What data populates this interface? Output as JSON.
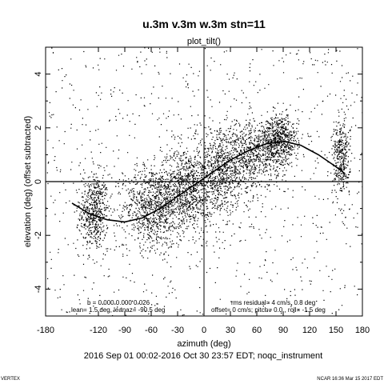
{
  "chart_data": {
    "type": "scatter",
    "title": "u.3m v.3m w.3m stn=11",
    "subtitle": "plot_tilt()",
    "xlabel": "azimuth (deg)",
    "ylabel": "elevation (deg)  (offset subtracted)",
    "xlim": [
      -180,
      180
    ],
    "ylim": [
      -5,
      5
    ],
    "xticks": [
      -180,
      -120,
      -90,
      -60,
      -30,
      0,
      30,
      60,
      90,
      120,
      150,
      180
    ],
    "xtick_labels": [
      "-180",
      "-120",
      "-90",
      "-60",
      "-30",
      "0",
      "30",
      "60",
      "90",
      "120",
      "150",
      "180"
    ],
    "yticks": [
      -4,
      -2,
      0,
      2,
      4
    ],
    "ytick_labels": [
      "-4",
      "-2",
      "0",
      "2",
      "4"
    ],
    "zero_lines": true,
    "grid": false,
    "legend": "none",
    "clusters": [
      {
        "x": -125,
        "y": -1.1,
        "sx": 8,
        "sy": 0.7,
        "n": 550
      },
      {
        "x": -60,
        "y": -0.9,
        "sx": 16,
        "sy": 0.75,
        "n": 850
      },
      {
        "x": -20,
        "y": -0.3,
        "sx": 15,
        "sy": 0.8,
        "n": 950
      },
      {
        "x": 20,
        "y": 0.4,
        "sx": 16,
        "sy": 0.75,
        "n": 800
      },
      {
        "x": 55,
        "y": 1.0,
        "sx": 14,
        "sy": 0.65,
        "n": 550
      },
      {
        "x": 85,
        "y": 1.55,
        "sx": 11,
        "sy": 0.45,
        "n": 700
      },
      {
        "x": 155,
        "y": 0.9,
        "sx": 5,
        "sy": 0.7,
        "n": 380
      }
    ],
    "fit_curve": [
      {
        "x": -150,
        "y": -0.8
      },
      {
        "x": -130,
        "y": -1.2
      },
      {
        "x": -110,
        "y": -1.42
      },
      {
        "x": -90,
        "y": -1.5
      },
      {
        "x": -70,
        "y": -1.35
      },
      {
        "x": -50,
        "y": -1.0
      },
      {
        "x": -30,
        "y": -0.55
      },
      {
        "x": -10,
        "y": -0.1
      },
      {
        "x": 10,
        "y": 0.35
      },
      {
        "x": 30,
        "y": 0.8
      },
      {
        "x": 50,
        "y": 1.15
      },
      {
        "x": 70,
        "y": 1.4
      },
      {
        "x": 90,
        "y": 1.5
      },
      {
        "x": 110,
        "y": 1.35
      },
      {
        "x": 130,
        "y": 1.0
      },
      {
        "x": 150,
        "y": 0.55
      },
      {
        "x": 160,
        "y": 0.3
      }
    ],
    "fit_summary_left_1": "b = 0.000 0.000 0.026",
    "fit_summary_left_2": "lean= 1.5 deg, leanaz= -90.5 deg",
    "fit_summary_right_1": "rms residual= 4 cm/s, 0.8 deg",
    "fit_summary_right_2": "offset= 0 cm/s; pitch= 0.0 , roll= -1.5 deg",
    "date_range": "2016 Sep 01 00:02-2016 Oct 30 23:57 EDT; noqc_instrument",
    "footer_left": "VERTEX",
    "footer_right": "NCAR 16:36 Mar 15 2017 EDT"
  }
}
